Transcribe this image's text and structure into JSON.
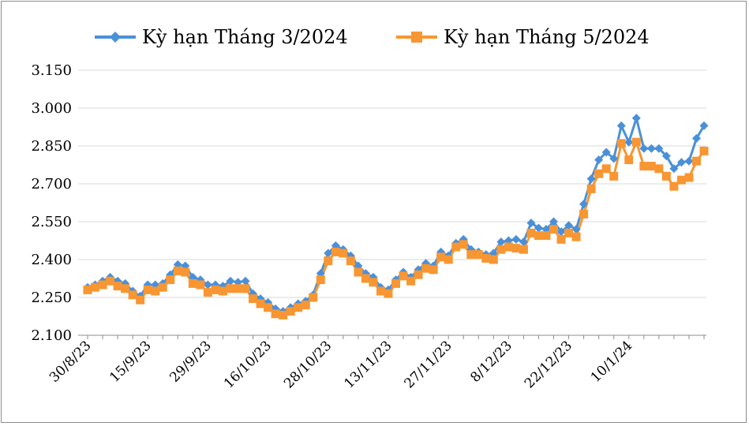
{
  "chart_data": {
    "type": "line",
    "title": "",
    "xlabel": "",
    "ylabel": "",
    "ylim": [
      2100,
      3150
    ],
    "y_ticks": [
      2100,
      2250,
      2400,
      2550,
      2700,
      2850,
      3000,
      3150
    ],
    "y_tick_labels": [
      "2.100",
      "2.250",
      "2.400",
      "2.550",
      "2.700",
      "2.850",
      "3.000",
      "3.150"
    ],
    "x_tick_labels": [
      "30/8/23",
      "15/9/23",
      "29/9/23",
      "16/10/23",
      "28/10/23",
      "13/11/23",
      "27/11/23",
      "8/12/23",
      "22/12/23",
      "10/1/24"
    ],
    "x_tick_positions": [
      0,
      8,
      16,
      24,
      32,
      40,
      48,
      56,
      64,
      72
    ],
    "grid": "horizontal",
    "legend_position": "top",
    "colors": {
      "series1": "#4a90d9",
      "series2": "#f79632",
      "grid": "#d9d9d9",
      "axis": "#8c8c8c"
    },
    "series": [
      {
        "name": "Kỳ hạn Tháng 3/2024",
        "marker": "diamond",
        "values": [
          2290,
          2300,
          2315,
          2330,
          2315,
          2305,
          2275,
          2255,
          2300,
          2300,
          2305,
          2340,
          2380,
          2375,
          2330,
          2320,
          2300,
          2300,
          2295,
          2315,
          2310,
          2315,
          2265,
          2245,
          2230,
          2205,
          2195,
          2210,
          2225,
          2235,
          2260,
          2345,
          2425,
          2455,
          2440,
          2415,
          2375,
          2345,
          2330,
          2290,
          2280,
          2320,
          2350,
          2330,
          2360,
          2385,
          2375,
          2430,
          2415,
          2465,
          2480,
          2440,
          2430,
          2420,
          2425,
          2470,
          2475,
          2480,
          2470,
          2545,
          2525,
          2520,
          2550,
          2510,
          2535,
          2520,
          2620,
          2720,
          2795,
          2825,
          2800,
          2930,
          2865,
          2960,
          2840,
          2840,
          2840,
          2810,
          2760,
          2785,
          2790,
          2880,
          2930
        ]
      },
      {
        "name": "Kỳ hạn Tháng 5/2024",
        "marker": "square",
        "values": [
          2280,
          2290,
          2300,
          2315,
          2295,
          2285,
          2260,
          2240,
          2280,
          2275,
          2290,
          2320,
          2355,
          2350,
          2305,
          2300,
          2270,
          2280,
          2275,
          2285,
          2285,
          2285,
          2245,
          2225,
          2210,
          2185,
          2180,
          2195,
          2210,
          2220,
          2250,
          2320,
          2395,
          2430,
          2425,
          2395,
          2350,
          2325,
          2310,
          2275,
          2265,
          2305,
          2335,
          2315,
          2340,
          2365,
          2360,
          2410,
          2400,
          2450,
          2460,
          2420,
          2420,
          2405,
          2400,
          2440,
          2450,
          2445,
          2440,
          2505,
          2495,
          2495,
          2520,
          2480,
          2505,
          2490,
          2580,
          2680,
          2740,
          2760,
          2730,
          2860,
          2795,
          2865,
          2770,
          2770,
          2760,
          2730,
          2690,
          2715,
          2725,
          2790,
          2830
        ]
      }
    ]
  }
}
